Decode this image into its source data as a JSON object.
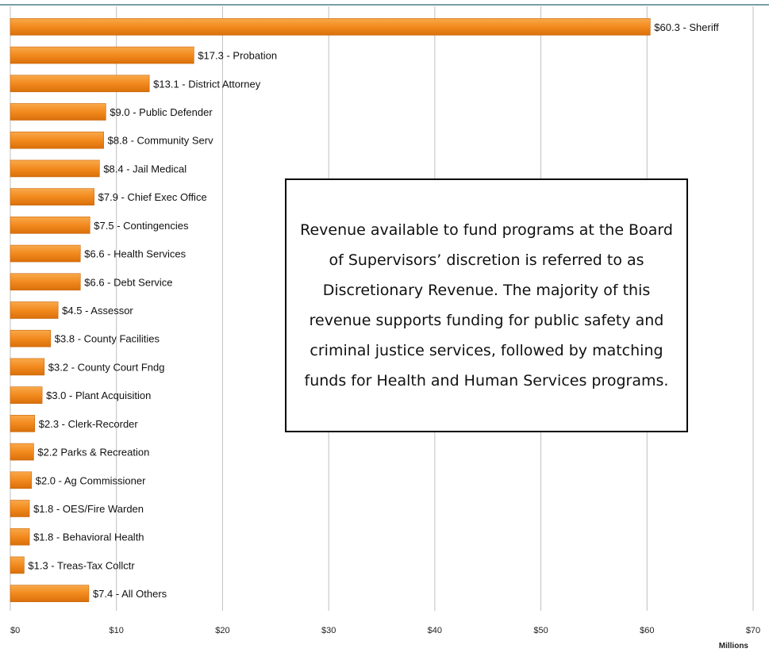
{
  "chart_data": {
    "type": "bar",
    "orientation": "horizontal",
    "categories": [
      "Sheriff",
      "Probation",
      "District Attorney",
      "Public Defender",
      "Community Serv",
      "Jail Medical",
      "Chief Exec Office",
      "Contingencies",
      "Health Services",
      "Debt Service",
      "Assessor",
      "County Facilities",
      "County Court Fndg",
      "Plant Acquisition",
      "Clerk-Recorder",
      "Parks & Recreation",
      "Ag Commissioner",
      "OES/Fire Warden",
      "Behavioral Health",
      "Treas-Tax Collctr",
      "All Others"
    ],
    "values": [
      60.3,
      17.3,
      13.1,
      9.0,
      8.8,
      8.4,
      7.9,
      7.5,
      6.6,
      6.6,
      4.5,
      3.8,
      3.2,
      3.0,
      2.3,
      2.2,
      2.0,
      1.8,
      1.8,
      1.3,
      7.4
    ],
    "data_labels": [
      "$60.3 - Sheriff",
      "$17.3 - Probation",
      "$13.1 - District Attorney",
      "$9.0 - Public Defender",
      "$8.8 - Community Serv",
      "$8.4 - Jail Medical",
      "$7.9 - Chief Exec Office",
      "$7.5 - Contingencies",
      "$6.6 - Health Services",
      "$6.6 - Debt Service",
      "$4.5 - Assessor",
      "$3.8 - County Facilities",
      "$3.2 - County Court Fndg",
      "$3.0 - Plant Acquisition",
      "$2.3 - Clerk-Recorder",
      "$2.2 Parks & Recreation",
      "$2.0 - Ag Commissioner",
      "$1.8 - OES/Fire Warden",
      "$1.8 - Behavioral Health",
      "$1.3 - Treas-Tax Collctr",
      "$7.4 - All Others"
    ],
    "xlim": [
      0,
      70
    ],
    "xticks": [
      0,
      10,
      20,
      30,
      40,
      50,
      60,
      70
    ],
    "xtick_labels": [
      "$0",
      "$10",
      "$20",
      "$30",
      "$40",
      "$50",
      "$60",
      "$70"
    ],
    "xlabel": "Millions",
    "grid": "vertical",
    "bar_color": "#F28A1E",
    "bar_edge_color": "#C86408"
  },
  "callout": {
    "text": "Revenue available to fund programs at the Board of Supervisors’ discretion is referred to as Discretionary Revenue.  The majority of this revenue  supports funding for public safety  and criminal justice services, followed by matching funds for Health and Human Services programs."
  },
  "colors": {
    "top_rule": "#4F7F8A",
    "grid": "#BFBFBF"
  }
}
